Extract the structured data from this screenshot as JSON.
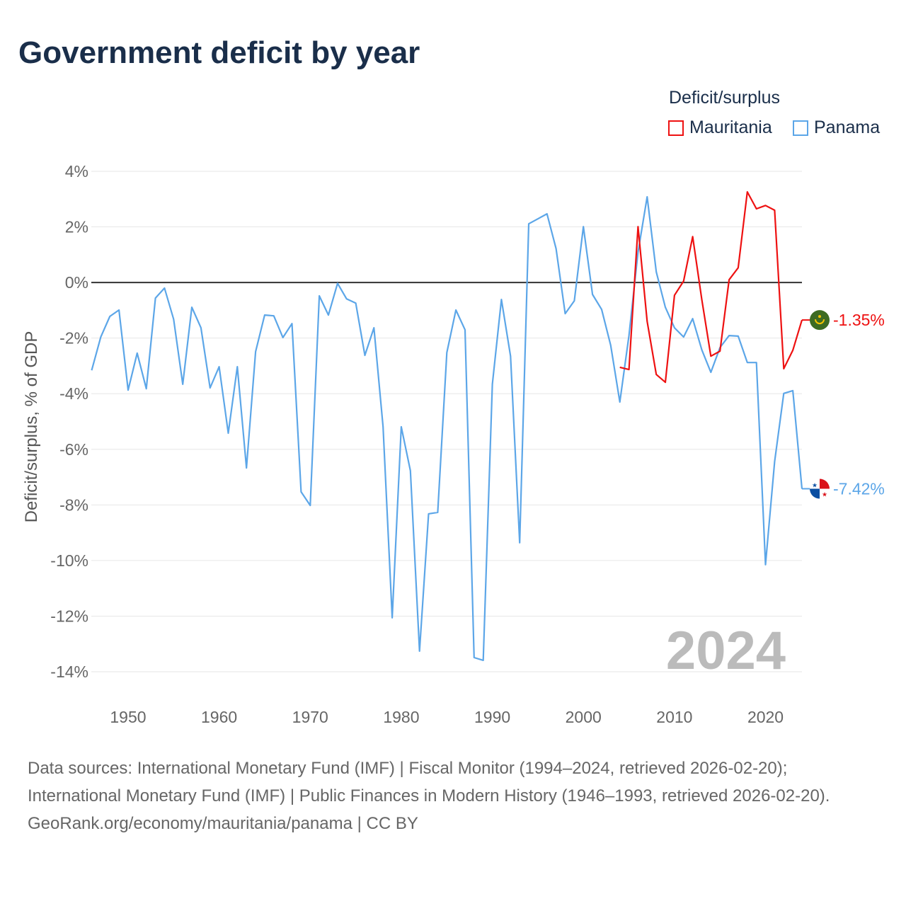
{
  "title": "Government deficit by year",
  "legend": {
    "title": "Deficit/surplus",
    "items": [
      {
        "name": "Mauritania",
        "color": "#ee1111"
      },
      {
        "name": "Panama",
        "color": "#5ca6e8"
      }
    ]
  },
  "year_watermark": "2024",
  "sources": {
    "line1": "Data sources: International Monetary Fund (IMF) | Fiscal Monitor (1994–2024, retrieved 2026-02-20); International Monetary Fund (IMF) | Public Finances in Modern History (1946–1993, retrieved 2026-02-20).",
    "line2": "GeoRank.org/economy/mauritania/panama | CC BY"
  },
  "chart_data": {
    "type": "line",
    "title": "Government deficit by year",
    "xlabel": "",
    "ylabel": "Deficit/surplus, % of GDP",
    "xlim": [
      1946,
      2024
    ],
    "ylim": [
      -14,
      4
    ],
    "x_ticks": [
      1950,
      1960,
      1970,
      1980,
      1990,
      2000,
      2010,
      2020
    ],
    "y_ticks": [
      4,
      2,
      0,
      -2,
      -4,
      -6,
      -8,
      -10,
      -12,
      -14
    ],
    "y_tick_labels": [
      "4%",
      "2%",
      "0%",
      "-2%",
      "-4%",
      "-6%",
      "-8%",
      "-10%",
      "-12%",
      "-14%"
    ],
    "grid": true,
    "legend_position": "top-right",
    "series": [
      {
        "name": "Mauritania",
        "color": "#ee1111",
        "end_label": "-1.35%",
        "start_year": 2004,
        "values": [
          -3.05,
          -3.13,
          2.01,
          -1.4,
          -3.31,
          -3.59,
          -0.46,
          0.05,
          1.65,
          -0.61,
          -2.65,
          -2.47,
          0.1,
          0.53,
          3.26,
          2.65,
          2.77,
          2.6,
          -3.1,
          -2.44,
          -1.35
        ]
      },
      {
        "name": "Panama",
        "color": "#5ca6e8",
        "end_label": "-7.42%",
        "start_year": 1946,
        "values": [
          -3.16,
          -1.96,
          -1.22,
          -0.99,
          -3.87,
          -2.54,
          -3.82,
          -0.56,
          -0.2,
          -1.32,
          -3.66,
          -0.89,
          -1.63,
          -3.79,
          -3.03,
          -5.42,
          -3.03,
          -6.67,
          -2.49,
          -1.17,
          -1.2,
          -1.98,
          -1.48,
          -7.53,
          -8.02,
          -0.48,
          -1.17,
          -0.03,
          -0.59,
          -0.74,
          -2.62,
          -1.63,
          -5.19,
          -12.06,
          -5.19,
          -6.77,
          -13.26,
          -8.32,
          -8.27,
          -2.52,
          -0.99,
          -1.7,
          -13.49,
          -13.59,
          -3.66,
          -0.61,
          -2.65,
          -9.36,
          2.11,
          2.29,
          2.47,
          1.22,
          -1.12,
          -0.66,
          2.01,
          -0.43,
          -0.97,
          -2.26,
          -4.3,
          -1.91,
          1.09,
          3.08,
          0.38,
          -0.89,
          -1.63,
          -1.96,
          -1.3,
          -2.42,
          -3.23,
          -2.34,
          -1.91,
          -1.93,
          -2.88,
          -2.88,
          -10.15,
          -6.44,
          -3.99,
          -3.89,
          -7.42
        ]
      }
    ]
  }
}
